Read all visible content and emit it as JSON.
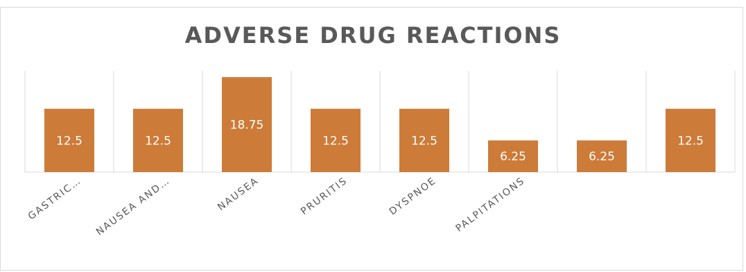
{
  "chart_data": {
    "type": "bar",
    "title": "ADVERSE DRUG REACTIONS",
    "categories": [
      "GASTRIC…",
      "NAUSEA AND…",
      "NAUSEA",
      "PRURITIS",
      "DYSPNOE",
      "PALPITATIONS",
      "",
      ""
    ],
    "values": [
      12.5,
      12.5,
      18.75,
      12.5,
      12.5,
      6.25,
      6.25,
      12.5
    ],
    "value_labels": [
      "12.5",
      "12.5",
      "18.75",
      "12.5",
      "12.5",
      "6.25",
      "6.25",
      "12.5"
    ],
    "ylim": [
      0,
      20
    ],
    "grid": "vertical",
    "legend": "none",
    "bar_color": "#CD7B38"
  }
}
